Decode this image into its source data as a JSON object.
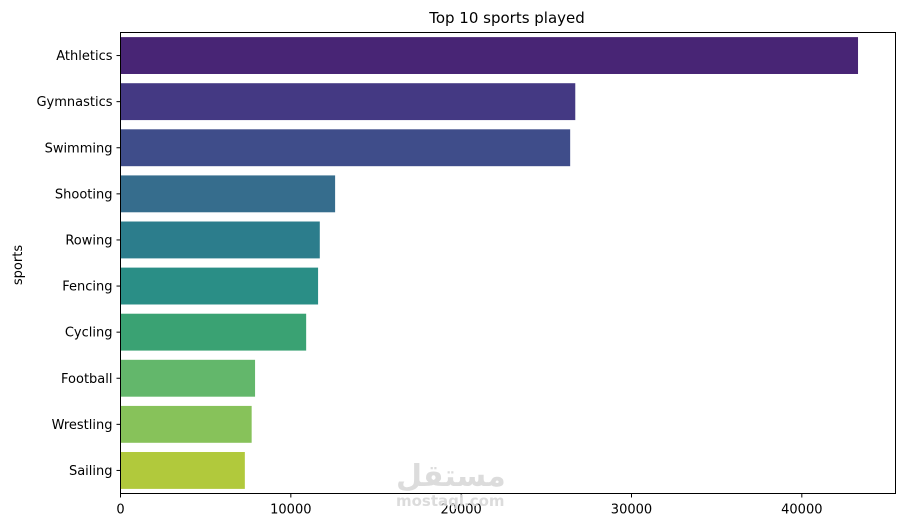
{
  "chart_data": {
    "type": "bar",
    "orientation": "horizontal",
    "title": "Top 10 sports played",
    "xlabel": "",
    "ylabel": "sports",
    "categories": [
      "Athletics",
      "Gymnastics",
      "Swimming",
      "Shooting",
      "Rowing",
      "Fencing",
      "Cycling",
      "Football",
      "Wrestling",
      "Sailing"
    ],
    "values": [
      43300,
      26700,
      26400,
      12600,
      11700,
      11600,
      10900,
      7900,
      7700,
      7300
    ],
    "xlim": [
      0,
      45500
    ],
    "xticks": [
      0,
      10000,
      20000,
      30000,
      40000
    ],
    "colors": [
      "#482575",
      "#443983",
      "#3f4d8a",
      "#366d8d",
      "#2c7d8c",
      "#2a8e86",
      "#3aa273",
      "#63b76b",
      "#87c25a",
      "#b1c93c"
    ],
    "grid": false,
    "legend": "none"
  },
  "watermark": {
    "logo": "مستقل",
    "text": "mostaql.com"
  }
}
